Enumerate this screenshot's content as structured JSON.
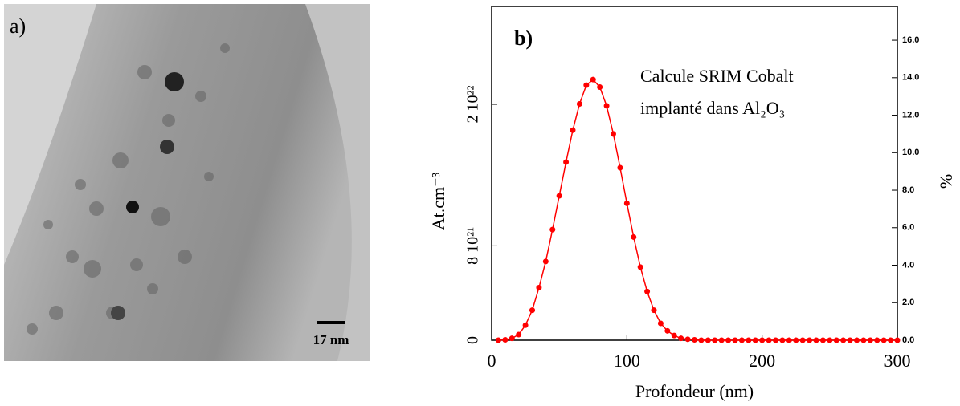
{
  "panel_a": {
    "label": "a)",
    "scale_bar": "17 nm"
  },
  "chart_data": {
    "type": "line",
    "title": "b)",
    "annotation_line1": "Calcule SRIM Cobalt",
    "annotation_line2": "implanté dans Al₂O₃",
    "xlabel": "Profondeur (nm)",
    "ylabel": "At.cm⁻³",
    "y2label": "%",
    "x": [
      5,
      10,
      15,
      20,
      25,
      30,
      35,
      40,
      45,
      50,
      55,
      60,
      65,
      70,
      75,
      80,
      85,
      90,
      95,
      100,
      105,
      110,
      115,
      120,
      125,
      130,
      135,
      140,
      145,
      150,
      155,
      160,
      165,
      170,
      175,
      180,
      185,
      190,
      195,
      200,
      205,
      210,
      215,
      220,
      225,
      230,
      235,
      240,
      245,
      250,
      255,
      260,
      265,
      270,
      275,
      280,
      285,
      290,
      295,
      300
    ],
    "series": [
      {
        "color": "#ff0000",
        "axis": "y2",
        "values": [
          0,
          0.02,
          0.1,
          0.3,
          0.8,
          1.6,
          2.8,
          4.2,
          5.9,
          7.7,
          9.5,
          11.2,
          12.6,
          13.6,
          13.9,
          13.5,
          12.5,
          11.0,
          9.2,
          7.3,
          5.5,
          3.9,
          2.6,
          1.6,
          0.9,
          0.5,
          0.25,
          0.1,
          0.05,
          0.02,
          0,
          0,
          0,
          0,
          0,
          0,
          0,
          0,
          0,
          0,
          0,
          0,
          0,
          0,
          0,
          0,
          0,
          0,
          0,
          0,
          0,
          0,
          0,
          0,
          0,
          0,
          0,
          0,
          0,
          0
        ]
      }
    ],
    "xlim": [
      0,
      300
    ],
    "xticks": [
      0,
      100,
      200,
      300
    ],
    "ylim": [
      0,
      2.83e+22
    ],
    "yticks": [
      0,
      {
        "value": 8e+21,
        "label": "8 10²¹"
      },
      {
        "value": 2e+22,
        "label": "2 10²²"
      }
    ],
    "y2lim": [
      0,
      17.8
    ],
    "y2ticks": [
      {
        "value": 0,
        "label": "0.0"
      },
      {
        "value": 2,
        "label": "2.0"
      },
      {
        "value": 4,
        "label": "4.0"
      },
      {
        "value": 6,
        "label": "6.0"
      },
      {
        "value": 8,
        "label": "8.0"
      },
      {
        "value": 10,
        "label": "10.0"
      },
      {
        "value": 12,
        "label": "12.0"
      },
      {
        "value": 14,
        "label": "14.0"
      },
      {
        "value": 16,
        "label": "16.0"
      }
    ]
  }
}
